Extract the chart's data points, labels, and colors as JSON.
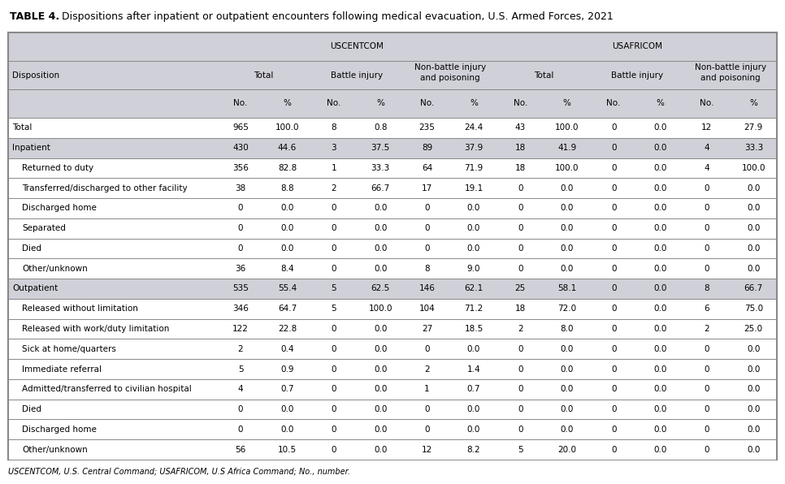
{
  "title_bold": "TABLE 4.",
  "title_rest": " Dispositions after inpatient or outpatient encounters following medical evacuation, U.S. Armed Forces, 2021",
  "footer": "USCENTCOM, U.S. Central Command; USAFRICOM, U.S Africa Command; No., number.",
  "rows": [
    {
      "label": "Total",
      "values": [
        "965",
        "100.0",
        "8",
        "0.8",
        "235",
        "24.4",
        "43",
        "100.0",
        "0",
        "0.0",
        "12",
        "27.9"
      ],
      "indent": false,
      "highlight": false
    },
    {
      "label": "Inpatient",
      "values": [
        "430",
        "44.6",
        "3",
        "37.5",
        "89",
        "37.9",
        "18",
        "41.9",
        "0",
        "0.0",
        "4",
        "33.3"
      ],
      "indent": false,
      "highlight": true
    },
    {
      "label": "Returned to duty",
      "values": [
        "356",
        "82.8",
        "1",
        "33.3",
        "64",
        "71.9",
        "18",
        "100.0",
        "0",
        "0.0",
        "4",
        "100.0"
      ],
      "indent": true,
      "highlight": false
    },
    {
      "label": "Transferred/discharged to other facility",
      "values": [
        "38",
        "8.8",
        "2",
        "66.7",
        "17",
        "19.1",
        "0",
        "0.0",
        "0",
        "0.0",
        "0",
        "0.0"
      ],
      "indent": true,
      "highlight": false
    },
    {
      "label": "Discharged home",
      "values": [
        "0",
        "0.0",
        "0",
        "0.0",
        "0",
        "0.0",
        "0",
        "0.0",
        "0",
        "0.0",
        "0",
        "0.0"
      ],
      "indent": true,
      "highlight": false
    },
    {
      "label": "Separated",
      "values": [
        "0",
        "0.0",
        "0",
        "0.0",
        "0",
        "0.0",
        "0",
        "0.0",
        "0",
        "0.0",
        "0",
        "0.0"
      ],
      "indent": true,
      "highlight": false
    },
    {
      "label": "Died",
      "values": [
        "0",
        "0.0",
        "0",
        "0.0",
        "0",
        "0.0",
        "0",
        "0.0",
        "0",
        "0.0",
        "0",
        "0.0"
      ],
      "indent": true,
      "highlight": false
    },
    {
      "label": "Other/unknown",
      "values": [
        "36",
        "8.4",
        "0",
        "0.0",
        "8",
        "9.0",
        "0",
        "0.0",
        "0",
        "0.0",
        "0",
        "0.0"
      ],
      "indent": true,
      "highlight": false
    },
    {
      "label": "Outpatient",
      "values": [
        "535",
        "55.4",
        "5",
        "62.5",
        "146",
        "62.1",
        "25",
        "58.1",
        "0",
        "0.0",
        "8",
        "66.7"
      ],
      "indent": false,
      "highlight": true
    },
    {
      "label": "Released without limitation",
      "values": [
        "346",
        "64.7",
        "5",
        "100.0",
        "104",
        "71.2",
        "18",
        "72.0",
        "0",
        "0.0",
        "6",
        "75.0"
      ],
      "indent": true,
      "highlight": false
    },
    {
      "label": "Released with work/duty limitation",
      "values": [
        "122",
        "22.8",
        "0",
        "0.0",
        "27",
        "18.5",
        "2",
        "8.0",
        "0",
        "0.0",
        "2",
        "25.0"
      ],
      "indent": true,
      "highlight": false
    },
    {
      "label": "Sick at home/quarters",
      "values": [
        "2",
        "0.4",
        "0",
        "0.0",
        "0",
        "0.0",
        "0",
        "0.0",
        "0",
        "0.0",
        "0",
        "0.0"
      ],
      "indent": true,
      "highlight": false
    },
    {
      "label": "Immediate referral",
      "values": [
        "5",
        "0.9",
        "0",
        "0.0",
        "2",
        "1.4",
        "0",
        "0.0",
        "0",
        "0.0",
        "0",
        "0.0"
      ],
      "indent": true,
      "highlight": false
    },
    {
      "label": "Admitted/transferred to civilian hospital",
      "values": [
        "4",
        "0.7",
        "0",
        "0.0",
        "1",
        "0.7",
        "0",
        "0.0",
        "0",
        "0.0",
        "0",
        "0.0"
      ],
      "indent": true,
      "highlight": false
    },
    {
      "label": "Died",
      "values": [
        "0",
        "0.0",
        "0",
        "0.0",
        "0",
        "0.0",
        "0",
        "0.0",
        "0",
        "0.0",
        "0",
        "0.0"
      ],
      "indent": true,
      "highlight": false
    },
    {
      "label": "Discharged home",
      "values": [
        "0",
        "0.0",
        "0",
        "0.0",
        "0",
        "0.0",
        "0",
        "0.0",
        "0",
        "0.0",
        "0",
        "0.0"
      ],
      "indent": true,
      "highlight": false
    },
    {
      "label": "Other/unknown",
      "values": [
        "56",
        "10.5",
        "0",
        "0.0",
        "12",
        "8.2",
        "5",
        "20.0",
        "0",
        "0.0",
        "0",
        "0.0"
      ],
      "indent": true,
      "highlight": false
    }
  ],
  "highlight_color": "#d0d0d8",
  "header_bg_color": "#d0d0d8",
  "background_color": "#ffffff",
  "line_color": "#888888",
  "font_size": 7.5,
  "title_font_size": 9.0,
  "footer_font_size": 7.0
}
